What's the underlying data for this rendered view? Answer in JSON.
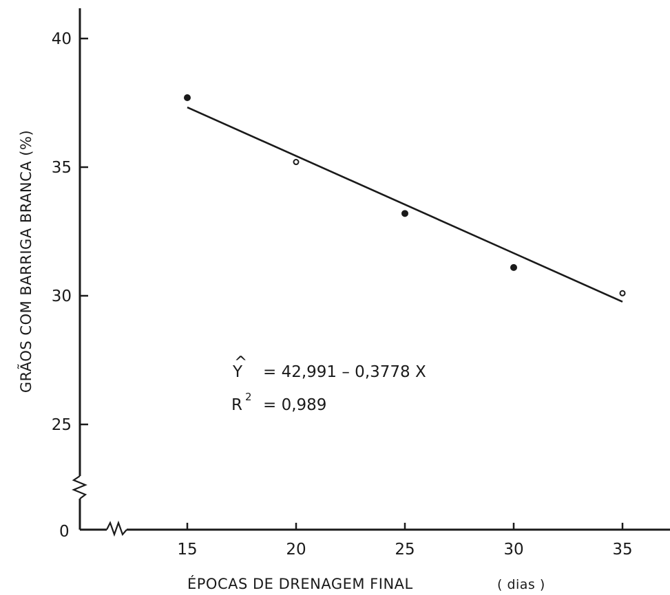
{
  "chart_data": {
    "type": "scatter",
    "title": "",
    "xlabel": "ÉPOCAS DE DRENAGEM FINAL",
    "xlabel_unit": "( dias )",
    "ylabel": "GRÃOS COM BARRIGA BRANCA  (%)",
    "x_ticks": [
      "15",
      "20",
      "25",
      "30",
      "35"
    ],
    "y_ticks": [
      "40",
      "35",
      "30",
      "25"
    ],
    "origin_label": "0",
    "xlim": [
      10,
      37
    ],
    "ylim": [
      21,
      40
    ],
    "axis_breaks": [
      "x",
      "y"
    ],
    "grid": false,
    "legend": "none",
    "series": [
      {
        "points": [
          {
            "x": 15,
            "y": 37.7,
            "marker": "filled"
          },
          {
            "x": 20,
            "y": 35.2,
            "marker": "open"
          },
          {
            "x": 25,
            "y": 33.2,
            "marker": "filled"
          },
          {
            "x": 30,
            "y": 31.1,
            "marker": "filled"
          },
          {
            "x": 35,
            "y": 30.1,
            "marker": "open"
          }
        ]
      }
    ],
    "regression": {
      "intercept": 42.991,
      "slope": -0.3778,
      "x_from": 15,
      "x_to": 35
    },
    "annotations": {
      "equation_lhs": "Y",
      "equation_hat": "^",
      "equation_rhs": "=  42,991 – 0,3778 X",
      "r2_lhs": "R",
      "r2_sup": "2",
      "r2_rhs": "=  0,989"
    },
    "colors": {
      "ink": "#1a1a1a",
      "background": "#ffffff"
    }
  }
}
